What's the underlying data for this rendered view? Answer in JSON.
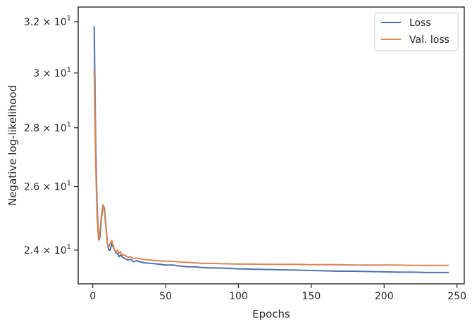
{
  "chart_data": {
    "type": "line",
    "xlabel": "Epochs",
    "ylabel": "Negative log-likelihood",
    "xlim": [
      -10,
      255
    ],
    "ylim": [
      23.0,
      32.6
    ],
    "y_scale": "log",
    "x_ticks": [
      0,
      50,
      100,
      150,
      200,
      250
    ],
    "x_tick_labels": [
      "0",
      "50",
      "100",
      "150",
      "200",
      "250"
    ],
    "y_ticks": [
      24,
      26,
      28,
      30,
      32
    ],
    "y_tick_labels": [
      {
        "mantissa": "2.4",
        "times": "×",
        "base": "10",
        "exp": "1"
      },
      {
        "mantissa": "2.6",
        "times": "×",
        "base": "10",
        "exp": "1"
      },
      {
        "mantissa": "2.8",
        "times": "×",
        "base": "10",
        "exp": "1"
      },
      {
        "mantissa": "3",
        "times": "×",
        "base": "10",
        "exp": "1"
      },
      {
        "mantissa": "3.2",
        "times": "×",
        "base": "10",
        "exp": "1"
      }
    ],
    "legend": {
      "position": "top-right"
    },
    "series": [
      {
        "name": "Loss",
        "color": "#4c72b0",
        "x": [
          1,
          2,
          3,
          4,
          5,
          6,
          7,
          8,
          9,
          10,
          11,
          12,
          13,
          14,
          15,
          16,
          17,
          18,
          19,
          20,
          22,
          24,
          26,
          28,
          30,
          35,
          40,
          45,
          50,
          55,
          60,
          65,
          70,
          75,
          80,
          90,
          100,
          110,
          120,
          130,
          140,
          150,
          160,
          170,
          180,
          190,
          200,
          210,
          220,
          230,
          240,
          244
        ],
        "y": [
          31.8,
          27.5,
          25.3,
          24.3,
          24.4,
          25.0,
          25.4,
          25.3,
          24.8,
          24.2,
          24.0,
          24.0,
          24.2,
          24.1,
          24.0,
          23.9,
          23.9,
          23.8,
          23.85,
          23.8,
          23.75,
          23.7,
          23.72,
          23.65,
          23.68,
          23.62,
          23.6,
          23.58,
          23.55,
          23.55,
          23.52,
          23.5,
          23.5,
          23.48,
          23.47,
          23.46,
          23.44,
          23.43,
          23.42,
          23.41,
          23.4,
          23.39,
          23.38,
          23.37,
          23.37,
          23.36,
          23.35,
          23.34,
          23.34,
          23.33,
          23.33,
          23.33
        ]
      },
      {
        "name": "Val. loss",
        "color": "#dd8452",
        "x": [
          1,
          2,
          3,
          4,
          5,
          6,
          7,
          8,
          9,
          10,
          11,
          12,
          13,
          14,
          15,
          16,
          17,
          18,
          19,
          20,
          22,
          24,
          26,
          28,
          30,
          35,
          40,
          45,
          50,
          55,
          60,
          65,
          70,
          75,
          80,
          90,
          100,
          110,
          120,
          130,
          140,
          150,
          160,
          170,
          180,
          190,
          200,
          210,
          220,
          230,
          240,
          244
        ],
        "y": [
          30.1,
          26.8,
          25.0,
          24.3,
          24.6,
          25.1,
          25.4,
          25.2,
          24.7,
          24.2,
          24.1,
          24.2,
          24.3,
          24.15,
          24.0,
          23.95,
          24.0,
          23.9,
          23.95,
          23.85,
          23.85,
          23.78,
          23.8,
          23.74,
          23.76,
          23.72,
          23.7,
          23.68,
          23.67,
          23.66,
          23.64,
          23.63,
          23.62,
          23.6,
          23.6,
          23.59,
          23.58,
          23.58,
          23.57,
          23.57,
          23.57,
          23.56,
          23.56,
          23.56,
          23.55,
          23.55,
          23.55,
          23.55,
          23.54,
          23.54,
          23.54,
          23.54
        ]
      }
    ]
  }
}
